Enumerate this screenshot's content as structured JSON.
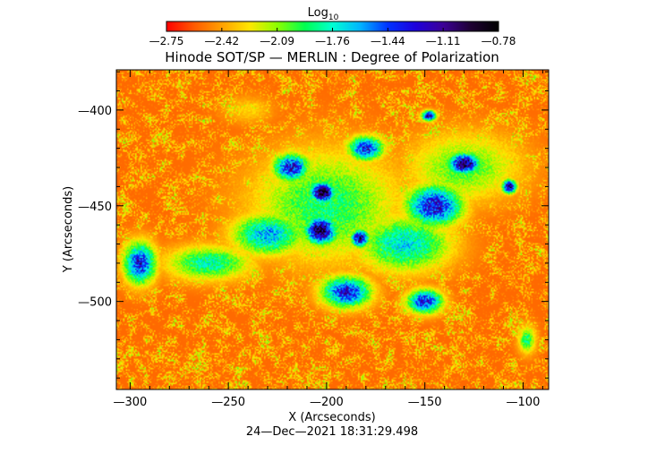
{
  "chart_data": {
    "type": "heatmap",
    "title": "Hinode SOT/SP — MERLIN : Degree of Polarization",
    "xlabel": "X (Arcseconds)",
    "ylabel": "Y (Arcseconds)",
    "timestamp": "24—Dec—2021 18:31:29.498",
    "xlim": [
      -307,
      -87
    ],
    "ylim": [
      -546,
      -379
    ],
    "x_ticks": [
      {
        "value": -300,
        "label": "—300"
      },
      {
        "value": -250,
        "label": "—250"
      },
      {
        "value": -200,
        "label": "—200"
      },
      {
        "value": -150,
        "label": "—150"
      },
      {
        "value": -100,
        "label": "—100"
      }
    ],
    "y_ticks": [
      {
        "value": -400,
        "label": "—400"
      },
      {
        "value": -450,
        "label": "—450"
      },
      {
        "value": -500,
        "label": "—500"
      }
    ],
    "colorbar": {
      "label_base": "Log",
      "label_sub": "10",
      "range": [
        -2.75,
        -0.78
      ],
      "tick_labels": [
        "—2.75",
        "—2.42",
        "—2.09",
        "—1.76",
        "—1.44",
        "—1.11",
        "—0.78"
      ],
      "colors": [
        "#ff0000",
        "#ff5a00",
        "#ffa000",
        "#ffe600",
        "#8cff00",
        "#00ff50",
        "#00ffd2",
        "#00b4ff",
        "#0032ff",
        "#1e00dc",
        "#3c0096",
        "#1e0032",
        "#000000"
      ]
    },
    "regions": [
      {
        "x": -202,
        "y": -443,
        "value": -0.85,
        "rx": 7,
        "ry": 6
      },
      {
        "x": -203,
        "y": -463,
        "value": -0.9,
        "rx": 9,
        "ry": 8
      },
      {
        "x": -183,
        "y": -467,
        "value": -1.05,
        "rx": 5,
        "ry": 5
      },
      {
        "x": -130,
        "y": -428,
        "value": -0.95,
        "rx": 9,
        "ry": 6
      },
      {
        "x": -107,
        "y": -440,
        "value": -1.0,
        "rx": 4,
        "ry": 4
      },
      {
        "x": -148,
        "y": -403,
        "value": -1.1,
        "rx": 4,
        "ry": 3
      },
      {
        "x": -218,
        "y": -430,
        "value": -1.25,
        "rx": 10,
        "ry": 8
      },
      {
        "x": -180,
        "y": -420,
        "value": -1.3,
        "rx": 10,
        "ry": 7
      },
      {
        "x": -145,
        "y": -450,
        "value": -1.25,
        "rx": 16,
        "ry": 12
      },
      {
        "x": -190,
        "y": -495,
        "value": -1.3,
        "rx": 14,
        "ry": 9
      },
      {
        "x": -150,
        "y": -500,
        "value": -1.3,
        "rx": 10,
        "ry": 7
      },
      {
        "x": -295,
        "y": -480,
        "value": -1.3,
        "rx": 9,
        "ry": 12
      },
      {
        "x": -230,
        "y": -465,
        "value": -1.6,
        "rx": 20,
        "ry": 12
      },
      {
        "x": -160,
        "y": -470,
        "value": -1.7,
        "rx": 26,
        "ry": 16
      },
      {
        "x": -260,
        "y": -480,
        "value": -1.8,
        "rx": 24,
        "ry": 10
      },
      {
        "x": -200,
        "y": -450,
        "value": -1.9,
        "rx": 42,
        "ry": 32
      },
      {
        "x": -130,
        "y": -430,
        "value": -2.0,
        "rx": 32,
        "ry": 20
      },
      {
        "x": -98,
        "y": -520,
        "value": -1.9,
        "rx": 5,
        "ry": 8
      },
      {
        "x": -240,
        "y": -400,
        "value": -2.3,
        "rx": 14,
        "ry": 8
      }
    ]
  }
}
